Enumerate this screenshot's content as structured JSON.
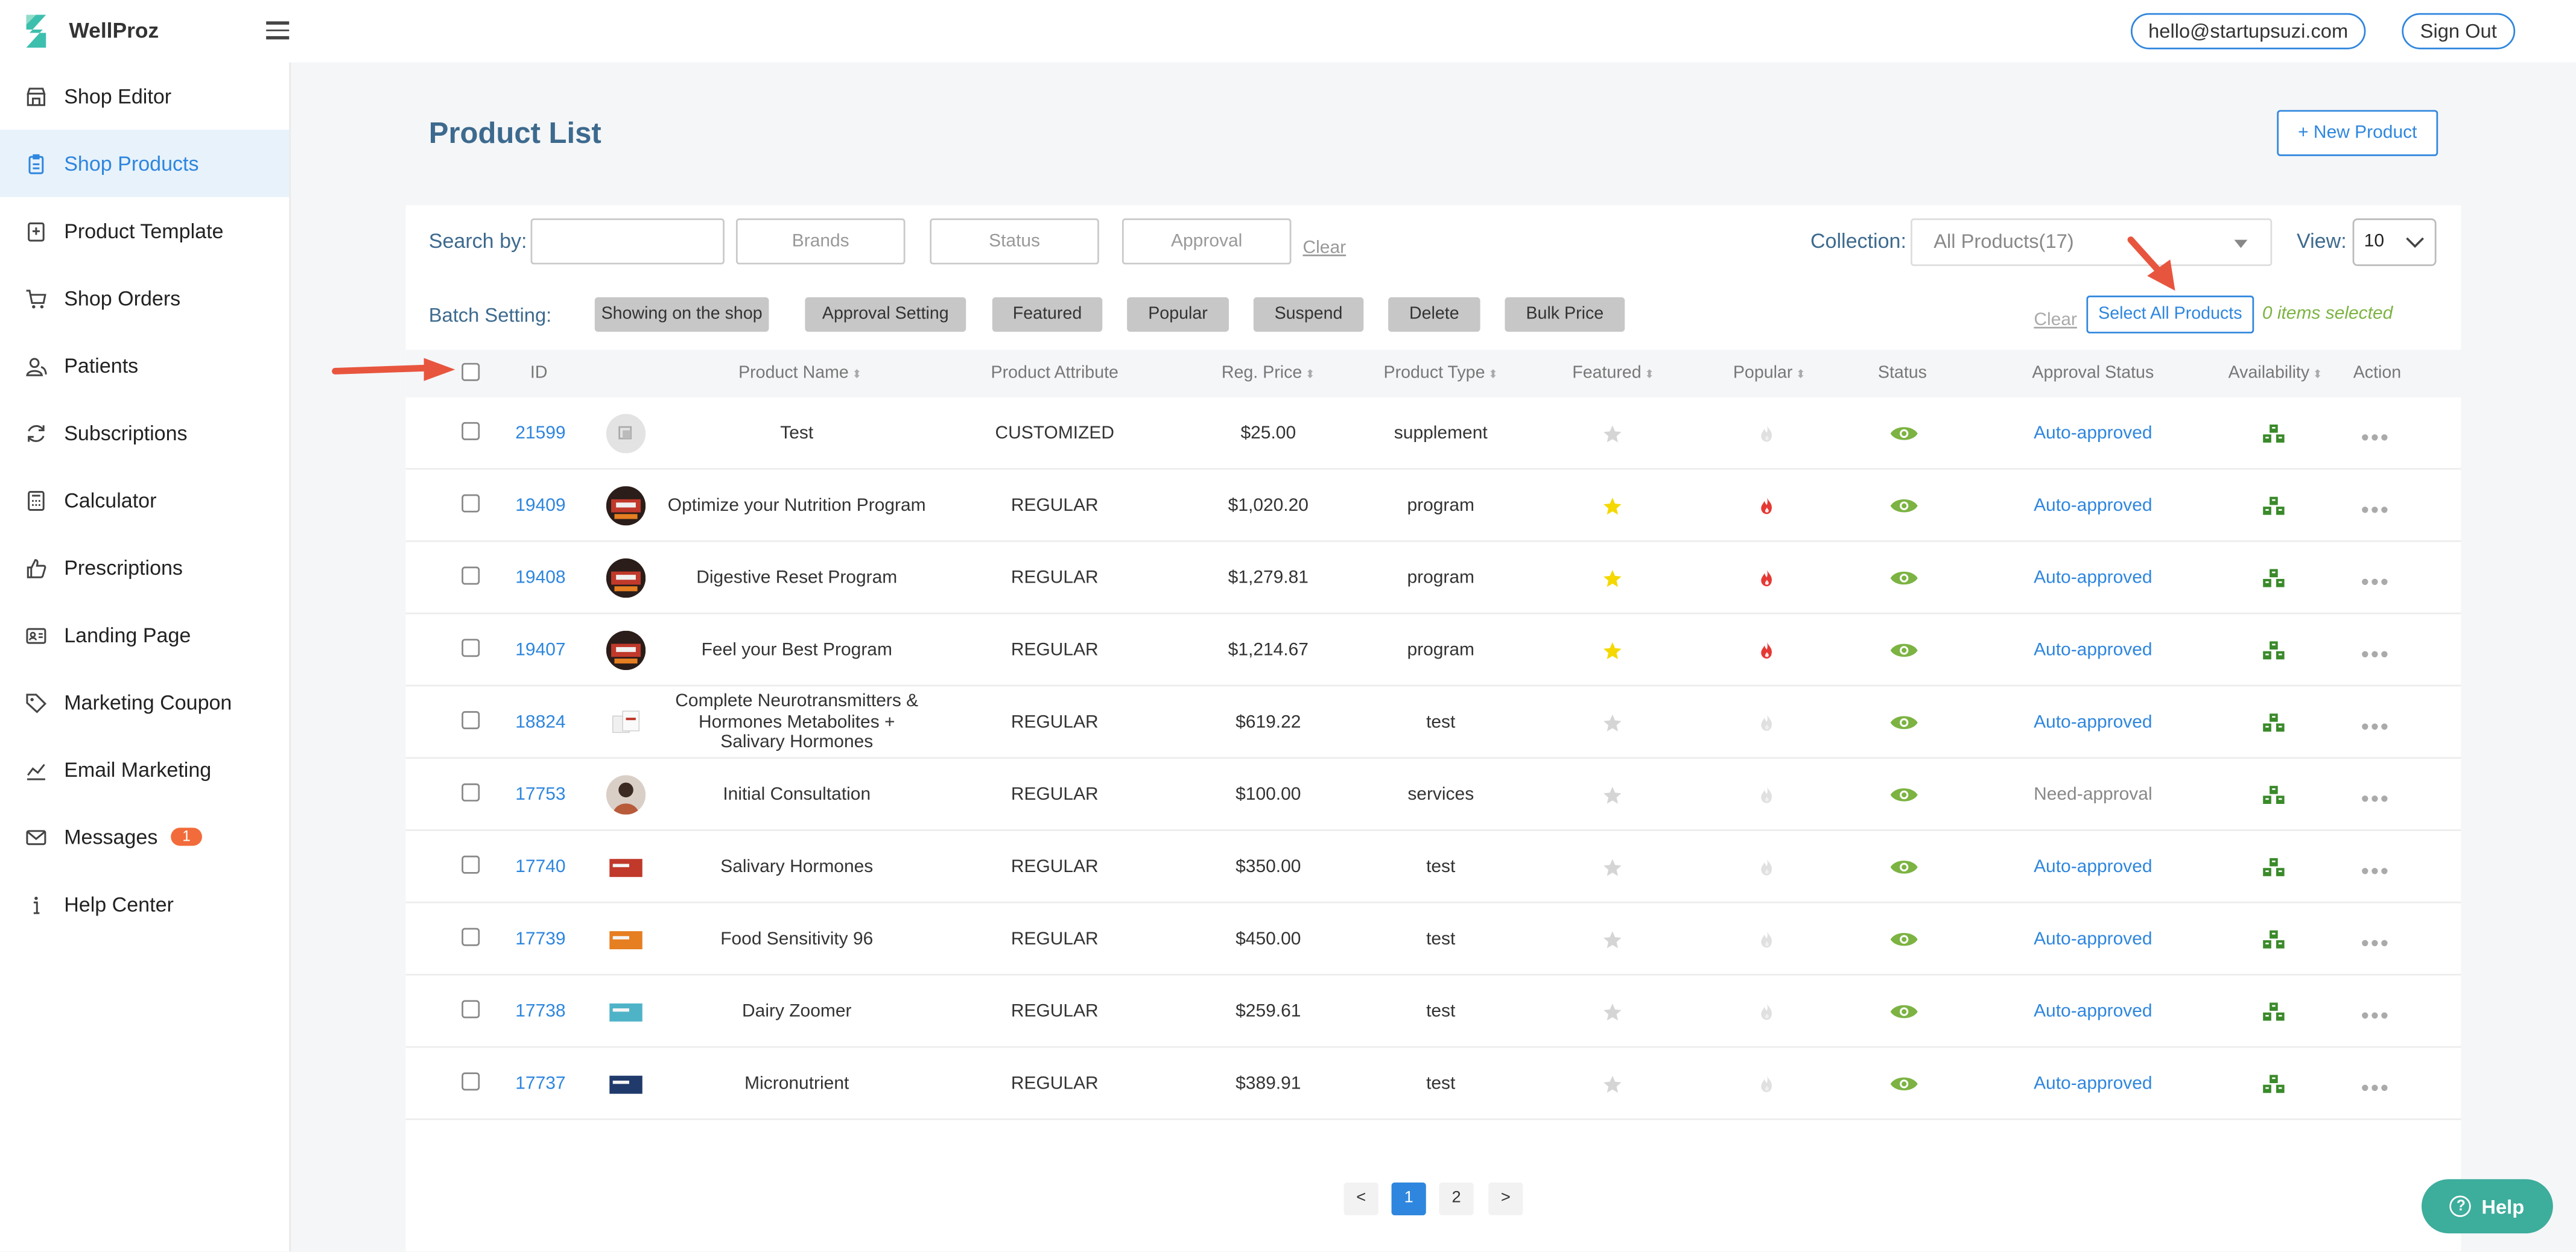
{
  "app": {
    "brand": "WellProz"
  },
  "header": {
    "email": "hello@startupsuzi.com",
    "sign_out": "Sign Out"
  },
  "sidebar": {
    "items": [
      {
        "label": "Shop Editor",
        "icon": "store-icon",
        "active": false
      },
      {
        "label": "Shop Products",
        "icon": "clipboard-icon",
        "active": true
      },
      {
        "label": "Product Template",
        "icon": "template-icon",
        "active": false
      },
      {
        "label": "Shop Orders",
        "icon": "cart-icon",
        "active": false
      },
      {
        "label": "Patients",
        "icon": "users-icon",
        "active": false
      },
      {
        "label": "Subscriptions",
        "icon": "refresh-icon",
        "active": false
      },
      {
        "label": "Calculator",
        "icon": "calculator-icon",
        "active": false
      },
      {
        "label": "Prescriptions",
        "icon": "thumbs-up-icon",
        "active": false
      },
      {
        "label": "Landing Page",
        "icon": "id-card-icon",
        "active": false
      },
      {
        "label": "Marketing Coupon",
        "icon": "tag-icon",
        "active": false
      },
      {
        "label": "Email Marketing",
        "icon": "chart-icon",
        "active": false
      },
      {
        "label": "Messages",
        "icon": "mail-icon",
        "active": false,
        "badge": "1"
      },
      {
        "label": "Help Center",
        "icon": "info-icon",
        "active": false
      }
    ]
  },
  "main": {
    "title": "Product List",
    "new_product": "+ New Product",
    "search_label": "Search by:",
    "search_value": "",
    "filters": {
      "brands": "Brands",
      "status": "Status",
      "approval": "Approval",
      "clear": "Clear"
    },
    "collection_label": "Collection:",
    "collection_value": "All Products(17)",
    "view_label": "View:",
    "view_value": "10",
    "batch_label": "Batch Setting:",
    "batch_buttons": [
      "Showing on the shop",
      "Approval Setting",
      "Featured",
      "Popular",
      "Suspend",
      "Delete",
      "Bulk Price"
    ],
    "batch_clear": "Clear",
    "select_all": "Select All Products",
    "items_selected": "0 items selected"
  },
  "table": {
    "headers": {
      "id": "ID",
      "name": "Product Name",
      "attribute": "Product Attribute",
      "price": "Reg. Price",
      "type": "Product Type",
      "featured": "Featured",
      "popular": "Popular",
      "status": "Status",
      "approval": "Approval Status",
      "availability": "Availability",
      "action": "Action"
    },
    "rows": [
      {
        "id": "21599",
        "name": "Test",
        "attribute": "CUSTOMIZED",
        "price": "$25.00",
        "type": "supplement",
        "featured": false,
        "popular": false,
        "approval": "Auto-approved",
        "thumb": "placeholder"
      },
      {
        "id": "19409",
        "name": "Optimize your Nutrition Program",
        "attribute": "REGULAR",
        "price": "$1,020.20",
        "type": "program",
        "featured": true,
        "popular": true,
        "approval": "Auto-approved",
        "thumb": "program"
      },
      {
        "id": "19408",
        "name": "Digestive Reset Program",
        "attribute": "REGULAR",
        "price": "$1,279.81",
        "type": "program",
        "featured": true,
        "popular": true,
        "approval": "Auto-approved",
        "thumb": "program"
      },
      {
        "id": "19407",
        "name": "Feel your Best Program",
        "attribute": "REGULAR",
        "price": "$1,214.67",
        "type": "program",
        "featured": true,
        "popular": true,
        "approval": "Auto-approved",
        "thumb": "program"
      },
      {
        "id": "18824",
        "name": "Complete Neurotransmitters & Hormones Metabolites + Salivary Hormones",
        "attribute": "REGULAR",
        "price": "$619.22",
        "type": "test",
        "featured": false,
        "popular": false,
        "approval": "Auto-approved",
        "thumb": "kit-white"
      },
      {
        "id": "17753",
        "name": "Initial Consultation",
        "attribute": "REGULAR",
        "price": "$100.00",
        "type": "services",
        "featured": false,
        "popular": false,
        "approval": "Need-approval",
        "thumb": "person"
      },
      {
        "id": "17740",
        "name": "Salivary Hormones",
        "attribute": "REGULAR",
        "price": "$350.00",
        "type": "test",
        "featured": false,
        "popular": false,
        "approval": "Auto-approved",
        "thumb": "kit-red"
      },
      {
        "id": "17739",
        "name": "Food Sensitivity 96",
        "attribute": "REGULAR",
        "price": "$450.00",
        "type": "test",
        "featured": false,
        "popular": false,
        "approval": "Auto-approved",
        "thumb": "kit-orange"
      },
      {
        "id": "17738",
        "name": "Dairy Zoomer",
        "attribute": "REGULAR",
        "price": "$259.61",
        "type": "test",
        "featured": false,
        "popular": false,
        "approval": "Auto-approved",
        "thumb": "kit-teal"
      },
      {
        "id": "17737",
        "name": "Micronutrient",
        "attribute": "REGULAR",
        "price": "$389.91",
        "type": "test",
        "featured": false,
        "popular": false,
        "approval": "Auto-approved",
        "thumb": "kit-navy"
      }
    ]
  },
  "pagination": {
    "prev": "<",
    "pages": [
      "1",
      "2"
    ],
    "current": "1",
    "next": ">"
  },
  "help": {
    "label": "Help"
  },
  "colors": {
    "accent": "#2e86de",
    "title": "#3d6a8e",
    "green": "#7cb342",
    "star_on": "#f5d800",
    "fire_on": "#e53935"
  }
}
